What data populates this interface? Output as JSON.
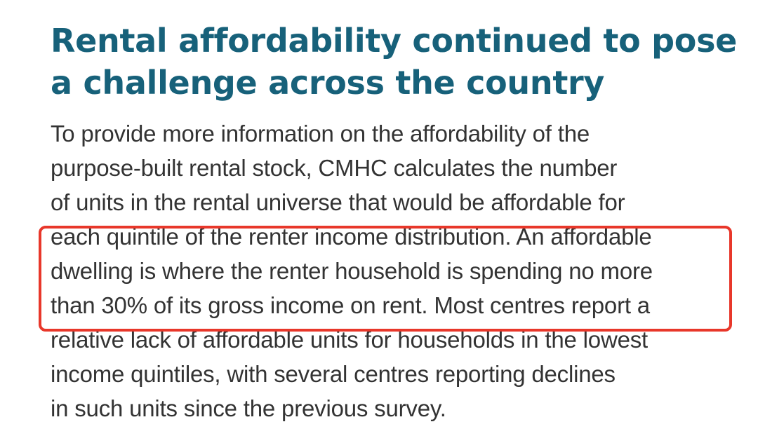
{
  "heading": {
    "lines": [
      "Rental affordability continued to pose",
      "a challenge across the country"
    ]
  },
  "paragraph": {
    "lines": [
      "To provide more information on the affordability of the",
      "purpose-built rental stock, CMHC calculates the number",
      "of units in the rental universe that would be affordable for",
      "each quintile of the renter income distribution. An affordable",
      "dwelling is where the renter household is spending no more",
      "than 30% of its gross income on rent. Most centres report a",
      "relative lack of affordable units for households in the lowest",
      "income quintiles, with several centres reporting declines",
      "in such units since the previous survey."
    ]
  },
  "colors": {
    "heading": "#17617a",
    "body_text": "#333333",
    "highlight_border": "#e8372a"
  }
}
